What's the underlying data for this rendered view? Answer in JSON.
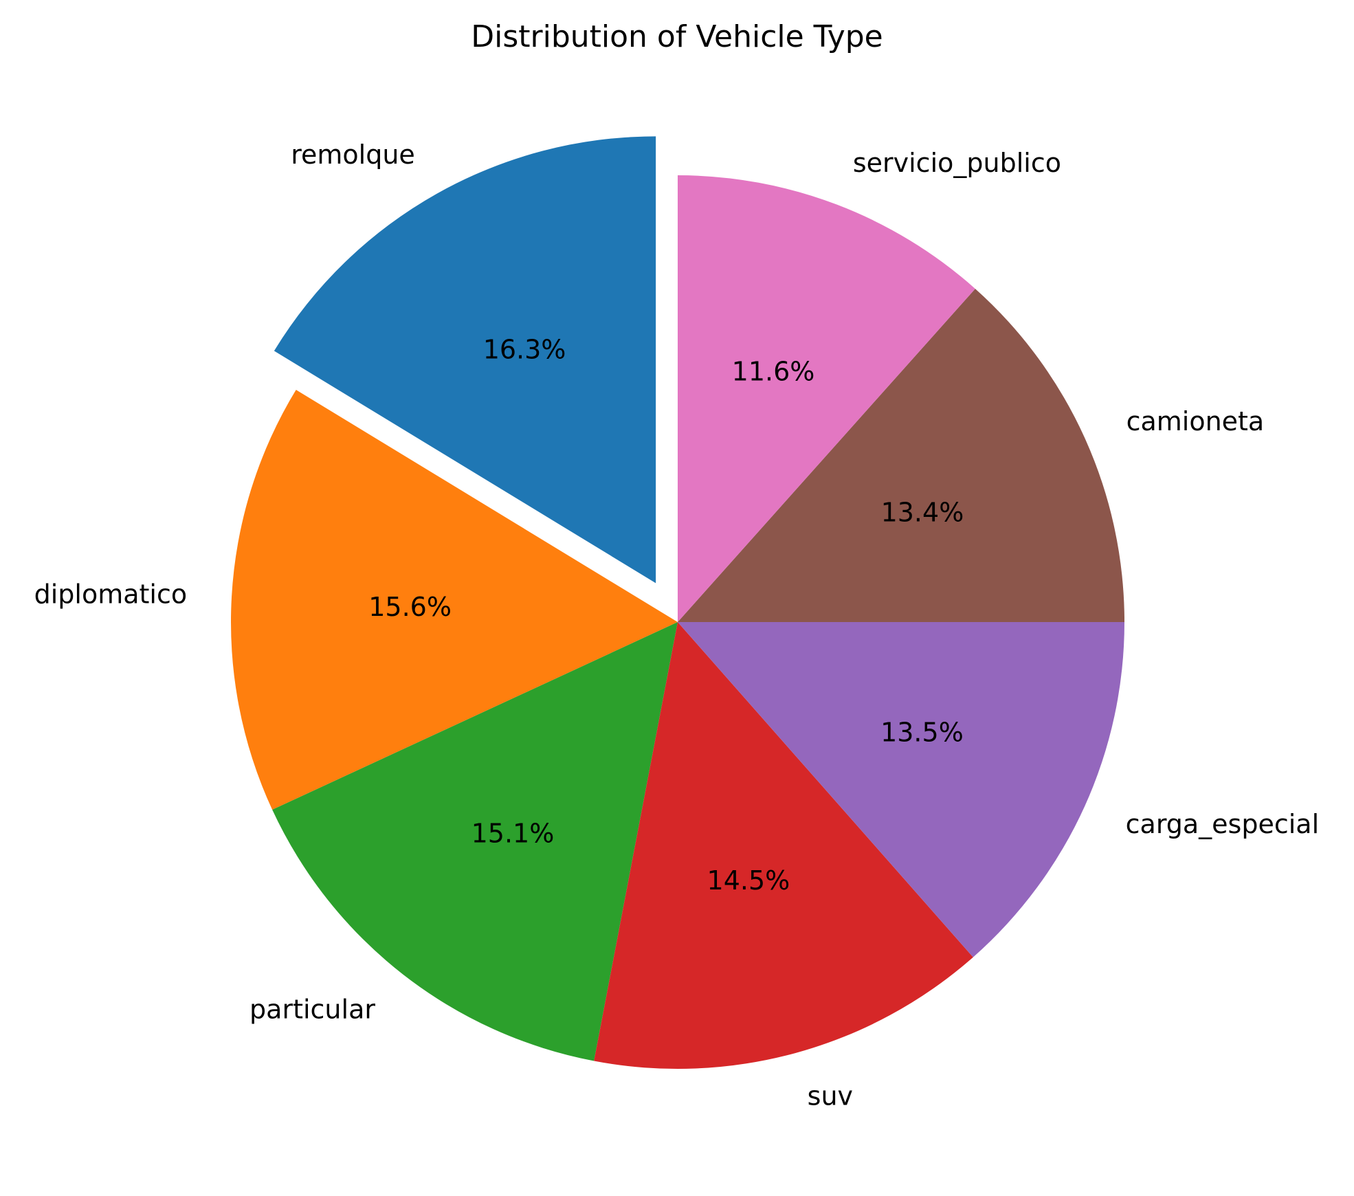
{
  "chart_data": {
    "type": "pie",
    "title": "Distribution of Vehicle Type",
    "start_angle_deg": 90,
    "direction": "counterclockwise",
    "slices": [
      {
        "label": "remolque",
        "value": 16.3,
        "pct_label": "16.3%",
        "color": "#1f77b4",
        "exploded": true
      },
      {
        "label": "diplomatico",
        "value": 15.6,
        "pct_label": "15.6%",
        "color": "#ff7f0e",
        "exploded": false
      },
      {
        "label": "particular",
        "value": 15.1,
        "pct_label": "15.1%",
        "color": "#2ca02c",
        "exploded": false
      },
      {
        "label": "suv",
        "value": 14.5,
        "pct_label": "14.5%",
        "color": "#d62728",
        "exploded": false
      },
      {
        "label": "carga_especial",
        "value": 13.5,
        "pct_label": "13.5%",
        "color": "#9467bd",
        "exploded": false
      },
      {
        "label": "camioneta",
        "value": 13.4,
        "pct_label": "13.4%",
        "color": "#8c564b",
        "exploded": false
      },
      {
        "label": "servicio_publico",
        "value": 11.6,
        "pct_label": "11.6%",
        "color": "#e377c2",
        "exploded": false
      }
    ]
  }
}
